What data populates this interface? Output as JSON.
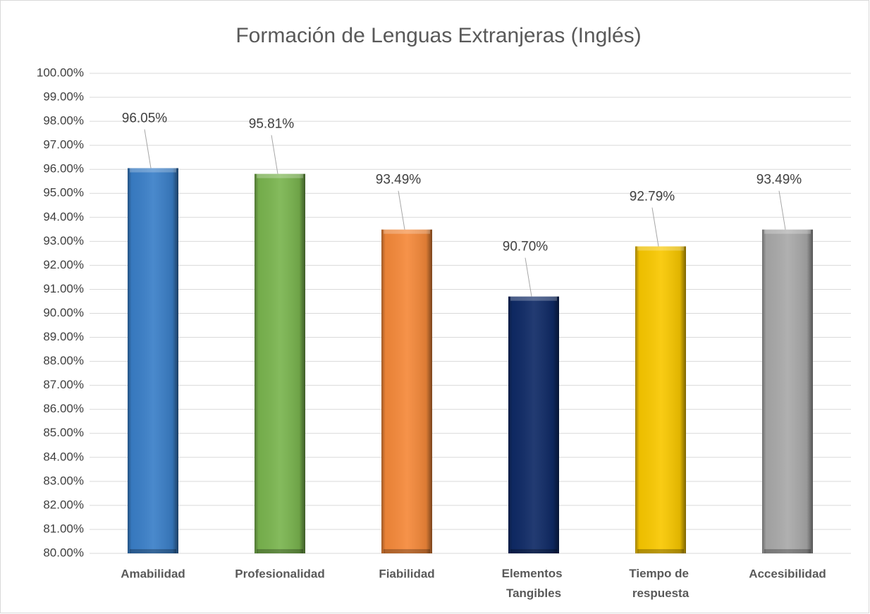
{
  "chart_data": {
    "type": "bar",
    "title": "Formación de Lenguas Extranjeras (Inglés)",
    "categories": [
      "Amabilidad",
      "Profesionalidad",
      "Fiabilidad",
      "Elementos Tangibles",
      "Tiempo de respuesta",
      "Accesibilidad"
    ],
    "values": [
      96.05,
      95.81,
      93.49,
      90.7,
      92.79,
      93.49
    ],
    "value_labels": [
      "96.05%",
      "95.81%",
      "93.49%",
      "90.70%",
      "92.79%",
      "93.49%"
    ],
    "colors": [
      "#3a7fc8",
      "#7ab54f",
      "#f5893a",
      "#0f2a66",
      "#f9c800",
      "#a9a9a9"
    ],
    "ylim": [
      80,
      100
    ],
    "yticks": [
      {
        "value": 80,
        "label": "80.00%"
      },
      {
        "value": 81,
        "label": "81.00%"
      },
      {
        "value": 82,
        "label": "82.00%"
      },
      {
        "value": 83,
        "label": "83.00%"
      },
      {
        "value": 84,
        "label": "84.00%"
      },
      {
        "value": 85,
        "label": "85.00%"
      },
      {
        "value": 86,
        "label": "86.00%"
      },
      {
        "value": 87,
        "label": "87.00%"
      },
      {
        "value": 88,
        "label": "88.00%"
      },
      {
        "value": 89,
        "label": "89.00%"
      },
      {
        "value": 90,
        "label": "90.00%"
      },
      {
        "value": 91,
        "label": "91.00%"
      },
      {
        "value": 92,
        "label": "92.00%"
      },
      {
        "value": 93,
        "label": "93.00%"
      },
      {
        "value": 94,
        "label": "94.00%"
      },
      {
        "value": 95,
        "label": "95.00%"
      },
      {
        "value": 96,
        "label": "96.00%"
      },
      {
        "value": 97,
        "label": "97.00%"
      },
      {
        "value": 98,
        "label": "98.00%"
      },
      {
        "value": 99,
        "label": "99.00%"
      },
      {
        "value": 100,
        "label": "100.00%"
      }
    ],
    "grid": true
  }
}
